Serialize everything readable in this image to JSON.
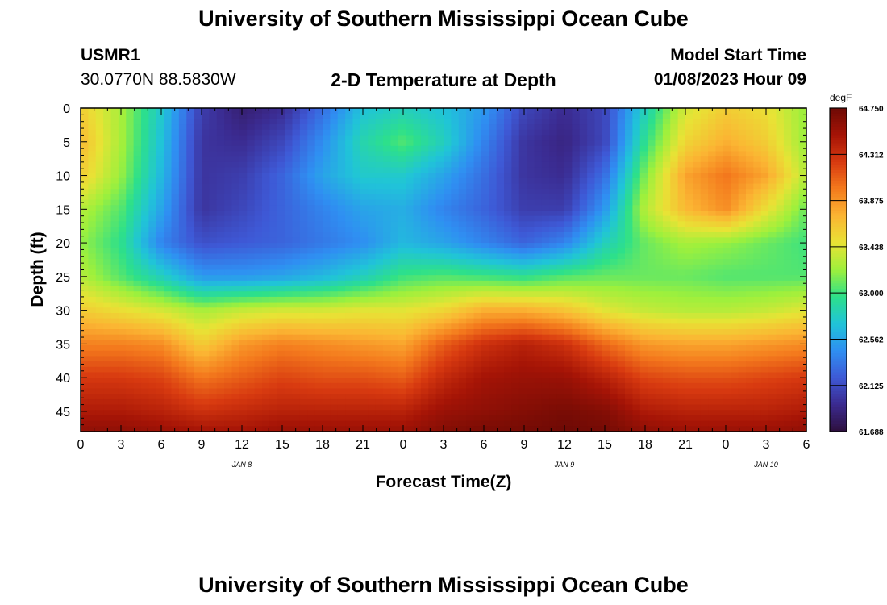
{
  "header": {
    "main_title": "University of Southern Mississippi Ocean Cube",
    "station_name": "USMR1",
    "station_coords": "30.0770N  88.5830W",
    "plot_title": "2-D Temperature at Depth",
    "model_start_label": "Model Start Time",
    "model_start_value": "01/08/2023 Hour 09"
  },
  "footer": {
    "repeat_title": "University of Southern Mississippi Ocean Cube"
  },
  "chart_data": {
    "type": "heatmap",
    "title": "2-D Temperature at Depth",
    "xlabel": "Forecast Time(Z)",
    "ylabel": "Depth (ft)",
    "x_range_hours": [
      0,
      54
    ],
    "x_tick_labels": [
      "0",
      "3",
      "6",
      "9",
      "12",
      "15",
      "18",
      "21",
      "0",
      "3",
      "6",
      "9",
      "12",
      "15",
      "18",
      "21",
      "0",
      "3",
      "6"
    ],
    "date_labels": [
      {
        "text": "JAN 8",
        "x_hour": 12
      },
      {
        "text": "JAN 9",
        "x_hour": 36
      },
      {
        "text": "JAN 10",
        "x_hour": 51
      }
    ],
    "y_range_ft": [
      0,
      48
    ],
    "y_ticks": [
      0,
      5,
      10,
      15,
      20,
      25,
      30,
      35,
      40,
      45
    ],
    "y_tick_labels": [
      "0",
      "5",
      "10",
      "15",
      "20",
      "25",
      "30",
      "35",
      "40",
      "45"
    ],
    "colorbar": {
      "unit": "degF",
      "min": 61.688,
      "max": 64.75,
      "tick_labels": [
        "64.750",
        "64.312",
        "63.875",
        "63.438",
        "63.000",
        "62.562",
        "62.125",
        "61.688"
      ],
      "tick_values": [
        64.75,
        64.312,
        63.875,
        63.438,
        63.0,
        62.562,
        62.125,
        61.688
      ],
      "colors": [
        "#2d0f3d",
        "#3b2a8f",
        "#3e59d6",
        "#2f8ff2",
        "#20c4d8",
        "#2de08a",
        "#9ef03c",
        "#e8e335",
        "#fbb533",
        "#f47a1d",
        "#d83a10",
        "#a51406",
        "#6e0a05"
      ]
    },
    "depths_ft": [
      0,
      5,
      10,
      15,
      20,
      25,
      30,
      35,
      40,
      45,
      48
    ],
    "times_h": [
      0,
      3,
      6,
      9,
      12,
      15,
      18,
      21,
      24,
      27,
      30,
      33,
      36,
      39,
      42,
      45,
      48,
      51,
      54
    ],
    "values_degF": [
      [
        63.6,
        63.25,
        62.75,
        62.05,
        61.85,
        61.95,
        62.3,
        62.7,
        62.8,
        62.7,
        62.5,
        62.1,
        61.95,
        62.1,
        62.8,
        63.4,
        63.6,
        63.5,
        63.2
      ],
      [
        63.7,
        63.25,
        62.7,
        62.0,
        61.95,
        62.1,
        62.45,
        62.85,
        63.05,
        62.8,
        62.4,
        62.0,
        61.9,
        62.1,
        62.95,
        63.55,
        63.75,
        63.6,
        63.2
      ],
      [
        63.6,
        63.2,
        62.65,
        62.0,
        62.05,
        62.25,
        62.55,
        62.75,
        62.75,
        62.55,
        62.3,
        62.0,
        61.95,
        62.3,
        63.15,
        63.8,
        64.0,
        63.8,
        63.3
      ],
      [
        63.3,
        63.05,
        62.55,
        62.0,
        62.1,
        62.25,
        62.4,
        62.55,
        62.6,
        62.4,
        62.25,
        62.05,
        62.05,
        62.5,
        63.3,
        63.7,
        63.9,
        63.5,
        63.1
      ],
      [
        63.2,
        62.95,
        62.4,
        62.15,
        62.2,
        62.25,
        62.35,
        62.45,
        62.65,
        62.55,
        62.4,
        62.25,
        62.4,
        62.8,
        63.1,
        63.25,
        63.2,
        63.1,
        63.0
      ],
      [
        63.3,
        63.05,
        62.8,
        62.5,
        62.5,
        62.55,
        62.65,
        62.8,
        63.0,
        63.05,
        63.0,
        62.95,
        63.05,
        63.1,
        63.1,
        63.1,
        63.05,
        63.05,
        63.05
      ],
      [
        63.6,
        63.5,
        63.4,
        63.25,
        63.35,
        63.4,
        63.4,
        63.45,
        63.45,
        63.55,
        63.75,
        63.75,
        63.65,
        63.45,
        63.35,
        63.3,
        63.3,
        63.35,
        63.45
      ],
      [
        63.95,
        63.95,
        63.9,
        63.6,
        63.85,
        63.95,
        63.9,
        63.85,
        63.8,
        64.1,
        64.3,
        64.4,
        64.3,
        64.05,
        63.85,
        63.8,
        63.8,
        63.85,
        63.9
      ],
      [
        64.25,
        64.25,
        64.2,
        64.0,
        64.1,
        64.2,
        64.15,
        64.15,
        64.1,
        64.35,
        64.5,
        64.55,
        64.55,
        64.4,
        64.2,
        64.15,
        64.15,
        64.2,
        64.25
      ],
      [
        64.45,
        64.45,
        64.4,
        64.3,
        64.35,
        64.4,
        64.4,
        64.4,
        64.4,
        64.55,
        64.6,
        64.65,
        64.7,
        64.65,
        64.45,
        64.4,
        64.4,
        64.4,
        64.45
      ],
      [
        64.6,
        64.6,
        64.55,
        64.5,
        64.5,
        64.55,
        64.55,
        64.55,
        64.55,
        64.65,
        64.7,
        64.72,
        64.75,
        64.72,
        64.6,
        64.55,
        64.55,
        64.55,
        64.6
      ]
    ]
  }
}
